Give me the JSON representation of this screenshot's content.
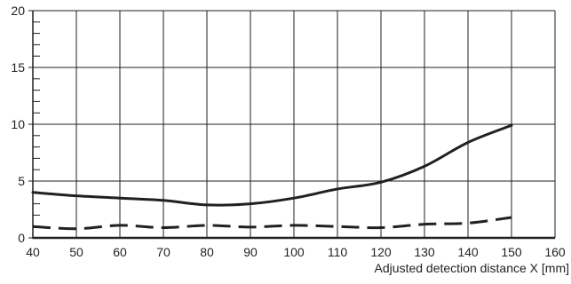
{
  "chart_data": {
    "type": "line",
    "title": "",
    "xlabel": "Adjusted detection distance X [mm]",
    "ylabel": "",
    "xlim": [
      40,
      160
    ],
    "ylim": [
      0,
      20
    ],
    "x_ticks": [
      40,
      50,
      60,
      70,
      80,
      90,
      100,
      110,
      120,
      130,
      140,
      150,
      160
    ],
    "x_tick_labels": [
      "40",
      "50",
      "60",
      "70",
      "80",
      "90",
      "100",
      "110",
      "120",
      "130",
      "140",
      "150",
      "160"
    ],
    "y_ticks": [
      0,
      5,
      10,
      15,
      20
    ],
    "y_tick_labels": [
      "0",
      "5",
      "10",
      "15",
      "20"
    ],
    "y_minor_step": 1,
    "grid": true,
    "legend": "none",
    "series": [
      {
        "style": "solid",
        "color": "#231f20",
        "x": [
          40,
          50,
          60,
          70,
          80,
          90,
          100,
          110,
          120,
          130,
          140,
          150
        ],
        "y": [
          4.0,
          3.7,
          3.5,
          3.3,
          2.9,
          3.0,
          3.5,
          4.3,
          4.9,
          6.3,
          8.4,
          9.9
        ]
      },
      {
        "style": "dashed",
        "color": "#231f20",
        "x": [
          40,
          50,
          60,
          70,
          80,
          90,
          100,
          110,
          120,
          130,
          140,
          150
        ],
        "y": [
          1.0,
          0.8,
          1.1,
          0.9,
          1.1,
          0.95,
          1.1,
          1.0,
          0.9,
          1.2,
          1.3,
          1.8
        ]
      }
    ]
  }
}
